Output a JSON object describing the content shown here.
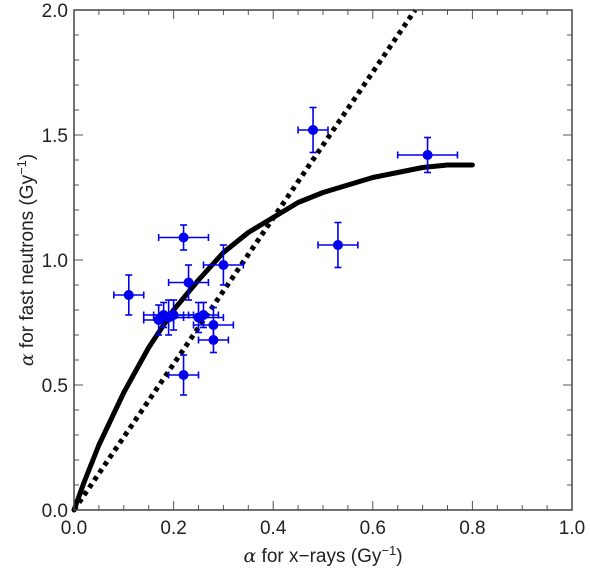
{
  "chart_data": {
    "type": "scatter",
    "xlabel": {
      "symbol": "α",
      "text": " for x−rays (Gy",
      "sup": "−1",
      "close": ")"
    },
    "ylabel": {
      "symbol": "α",
      "text": " for fast neutrons (Gy",
      "sup": "−1",
      "close": ")"
    },
    "xlim": [
      0.0,
      1.0
    ],
    "ylim": [
      0.0,
      2.0
    ],
    "x_ticks": [
      "0.0",
      "0.2",
      "0.4",
      "0.6",
      "0.8",
      "1.0"
    ],
    "y_ticks": [
      "0.0",
      "0.5",
      "1.0",
      "1.5",
      "2.0"
    ],
    "grid": false,
    "colors": {
      "points": "#0000ee",
      "curves": "#000000"
    },
    "points": [
      {
        "x": 0.11,
        "y": 0.86,
        "xerr": 0.03,
        "yerr": 0.08
      },
      {
        "x": 0.17,
        "y": 0.76,
        "xerr": 0.03,
        "yerr": 0.06
      },
      {
        "x": 0.18,
        "y": 0.78,
        "xerr": 0.04,
        "yerr": 0.05
      },
      {
        "x": 0.19,
        "y": 0.77,
        "xerr": 0.03,
        "yerr": 0.07
      },
      {
        "x": 0.2,
        "y": 0.78,
        "xerr": 0.04,
        "yerr": 0.06
      },
      {
        "x": 0.22,
        "y": 1.09,
        "xerr": 0.05,
        "yerr": 0.05
      },
      {
        "x": 0.22,
        "y": 0.54,
        "xerr": 0.03,
        "yerr": 0.08
      },
      {
        "x": 0.23,
        "y": 0.91,
        "xerr": 0.04,
        "yerr": 0.07
      },
      {
        "x": 0.25,
        "y": 0.77,
        "xerr": 0.05,
        "yerr": 0.06
      },
      {
        "x": 0.26,
        "y": 0.78,
        "xerr": 0.03,
        "yerr": 0.05
      },
      {
        "x": 0.28,
        "y": 0.74,
        "xerr": 0.04,
        "yerr": 0.07
      },
      {
        "x": 0.28,
        "y": 0.68,
        "xerr": 0.03,
        "yerr": 0.05
      },
      {
        "x": 0.3,
        "y": 0.98,
        "xerr": 0.04,
        "yerr": 0.08
      },
      {
        "x": 0.48,
        "y": 1.52,
        "xerr": 0.03,
        "yerr": 0.09
      },
      {
        "x": 0.53,
        "y": 1.06,
        "xerr": 0.04,
        "yerr": 0.09
      },
      {
        "x": 0.71,
        "y": 1.42,
        "xerr": 0.06,
        "yerr": 0.07
      }
    ],
    "solid_curve": {
      "x": [
        0.0,
        0.02,
        0.05,
        0.1,
        0.15,
        0.2,
        0.25,
        0.3,
        0.35,
        0.4,
        0.45,
        0.5,
        0.55,
        0.6,
        0.65,
        0.7,
        0.75,
        0.8
      ],
      "y": [
        0.0,
        0.11,
        0.26,
        0.47,
        0.65,
        0.8,
        0.92,
        1.03,
        1.11,
        1.17,
        1.23,
        1.27,
        1.3,
        1.33,
        1.35,
        1.37,
        1.38,
        1.38
      ]
    },
    "dotted_line": {
      "x": [
        0.0,
        0.685
      ],
      "y": [
        0.0,
        2.0
      ]
    }
  }
}
